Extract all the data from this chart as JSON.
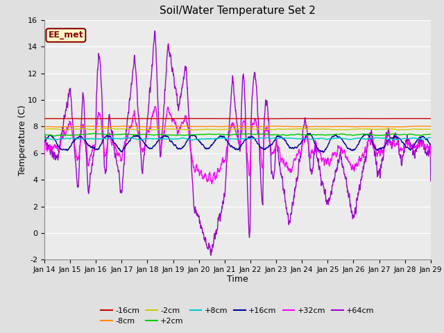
{
  "title": "Soil/Water Temperature Set 2",
  "xlabel": "Time",
  "ylabel": "Temperature (C)",
  "ylim": [
    -2,
    16
  ],
  "yticks": [
    -2,
    0,
    2,
    4,
    6,
    8,
    10,
    12,
    14,
    16
  ],
  "xlim": [
    0,
    15
  ],
  "xtick_labels": [
    "Jan 14",
    "Jan 15",
    "Jan 16",
    "Jan 17",
    "Jan 18",
    "Jan 19",
    "Jan 20",
    "Jan 21",
    "Jan 22",
    "Jan 23",
    "Jan 24",
    "Jan 25",
    "Jan 26",
    "Jan 27",
    "Jan 28",
    "Jan 29"
  ],
  "annotation_text": "EE_met",
  "annotation_color": "#8B0000",
  "annotation_bg": "#FFFFCC",
  "series_colors": {
    "-16cm": "#CC0000",
    "-8cm": "#FF8800",
    "-2cm": "#CCCC00",
    "+2cm": "#00CC00",
    "+8cm": "#00CCCC",
    "+16cm": "#000099",
    "+32cm": "#FF00FF",
    "+64cm": "#9900CC"
  },
  "bg_color": "#E0E0E0",
  "plot_bg": "#EBEBEB",
  "grid_color": "#FFFFFF",
  "fig_width": 6.4,
  "fig_height": 4.8,
  "dpi": 100
}
